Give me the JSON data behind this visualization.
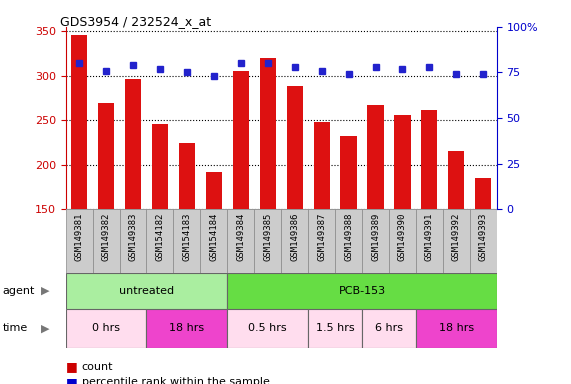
{
  "title": "GDS3954 / 232524_x_at",
  "samples": [
    "GSM149381",
    "GSM149382",
    "GSM149383",
    "GSM154182",
    "GSM154183",
    "GSM154184",
    "GSM149384",
    "GSM149385",
    "GSM149386",
    "GSM149387",
    "GSM149388",
    "GSM149389",
    "GSM149390",
    "GSM149391",
    "GSM149392",
    "GSM149393"
  ],
  "counts": [
    346,
    270,
    296,
    246,
    224,
    192,
    305,
    320,
    288,
    248,
    232,
    267,
    256,
    262,
    215,
    185
  ],
  "percentile_ranks": [
    80,
    76,
    79,
    77,
    75,
    73,
    80,
    80,
    78,
    76,
    74,
    78,
    77,
    78,
    74,
    74
  ],
  "ylim_left": [
    150,
    355
  ],
  "ylim_right": [
    0,
    100
  ],
  "yticks_left": [
    150,
    200,
    250,
    300,
    350
  ],
  "yticks_right": [
    0,
    25,
    50,
    75,
    100
  ],
  "bar_color": "#dd1111",
  "dot_color": "#2222cc",
  "grid_color": "#000000",
  "label_bg_color": "#cccccc",
  "agent_groups": [
    {
      "text": "untreated",
      "start": 0,
      "end": 6,
      "color": "#aaeea0"
    },
    {
      "text": "PCB-153",
      "start": 6,
      "end": 16,
      "color": "#66dd44"
    }
  ],
  "time_groups": [
    {
      "text": "0 hrs",
      "start": 0,
      "end": 3,
      "color": "#ffddee"
    },
    {
      "text": "18 hrs",
      "start": 3,
      "end": 6,
      "color": "#ee44cc"
    },
    {
      "text": "0.5 hrs",
      "start": 6,
      "end": 9,
      "color": "#ffddee"
    },
    {
      "text": "1.5 hrs",
      "start": 9,
      "end": 11,
      "color": "#ffddee"
    },
    {
      "text": "6 hrs",
      "start": 11,
      "end": 13,
      "color": "#ffddee"
    },
    {
      "text": "18 hrs",
      "start": 13,
      "end": 16,
      "color": "#ee44cc"
    }
  ],
  "tick_color_left": "#cc0000",
  "tick_color_right": "#0000cc",
  "legend_count_color": "#cc0000",
  "legend_dot_color": "#0000cc"
}
